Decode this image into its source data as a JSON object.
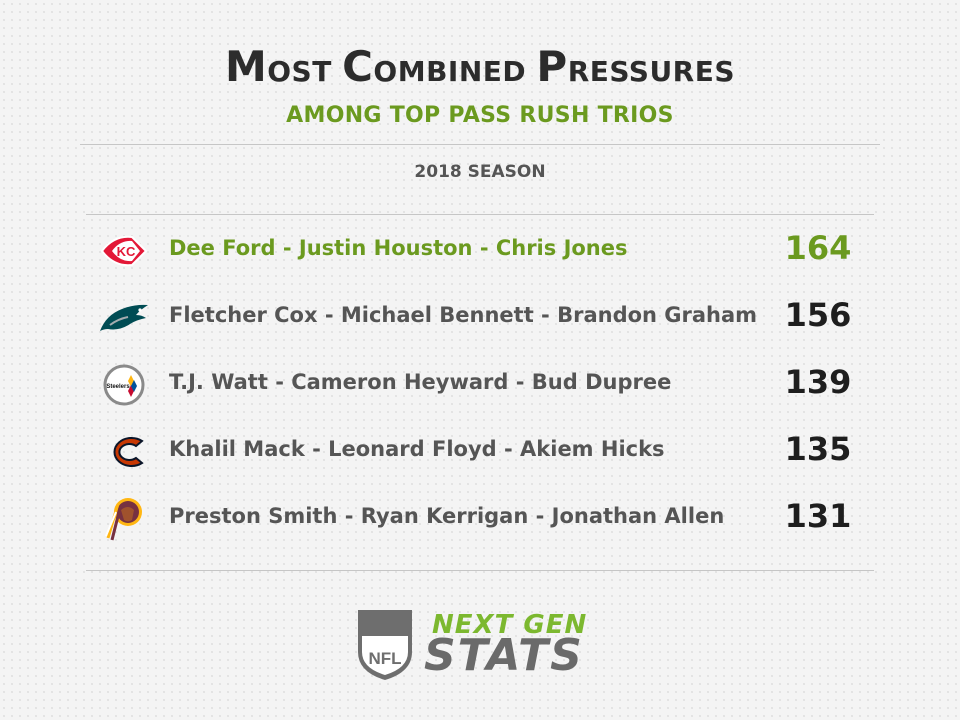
{
  "title": {
    "part1_initial": "M",
    "part1_rest": "OST ",
    "part2_initial": "C",
    "part2_rest": "OMBINED ",
    "part3_initial": "P",
    "part3_rest": "RESSURES"
  },
  "subtitle": "AMONG TOP PASS RUSH TRIOS",
  "season": "2018 SEASON",
  "chart_data": {
    "type": "table",
    "columns": [
      "team",
      "trio",
      "combined_pressures"
    ],
    "rows": [
      {
        "team_icon": "chiefs-logo-icon",
        "trio": "Dee Ford - Justin Houston - Chris Jones",
        "value": 164,
        "highlight": true
      },
      {
        "team_icon": "eagles-logo-icon",
        "trio": "Fletcher Cox - Michael Bennett - Brandon Graham",
        "value": 156,
        "highlight": false
      },
      {
        "team_icon": "steelers-logo-icon",
        "trio": "T.J. Watt - Cameron Heyward - Bud Dupree",
        "value": 139,
        "highlight": false
      },
      {
        "team_icon": "bears-logo-icon",
        "trio": "Khalil Mack - Leonard Floyd - Akiem Hicks",
        "value": 135,
        "highlight": false
      },
      {
        "team_icon": "redskins-logo-icon",
        "trio": "Preston Smith - Ryan Kerrigan - Jonathan Allen",
        "value": 131,
        "highlight": false
      }
    ]
  },
  "footer": {
    "brand_top": "NEXT GEN",
    "brand_bottom": "STATS",
    "shield_text": "NFL",
    "shield_icon": "nfl-shield-icon"
  },
  "colors": {
    "accent": "#6b9a1f",
    "text_dark": "#1e1e1e",
    "text_gray": "#555555",
    "brand_green": "#7cb82f"
  }
}
